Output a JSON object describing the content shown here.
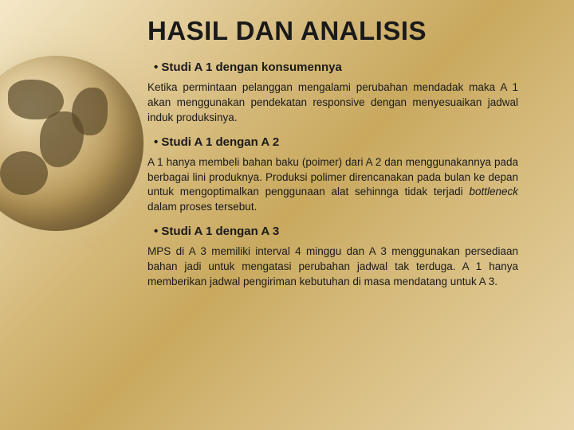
{
  "title": "HASIL DAN ANALISIS",
  "sections": [
    {
      "heading": "• Studi A 1 dengan konsumennya",
      "body": "Ketika permintaan pelanggan mengalami perubahan mendadak maka A 1 akan menggunakan pendekatan responsive dengan menyesuaikan jadwal induk produksinya."
    },
    {
      "heading": "• Studi A 1 dengan A 2",
      "body": "A 1 hanya membeli bahan baku (poimer) dari A 2 dan menggunakannya pada berbagai lini produknya. Produksi polimer direncanakan pada bulan ke depan untuk mengoptimalkan penggunaan alat sehinnga tidak terjadi <em>bottleneck</em> dalam proses tersebut."
    },
    {
      "heading": "• Studi A 1 dengan A 3",
      "body": "MPS di A 3 memiliki interval 4 minggu dan A 3 menggunakan persediaan bahan jadi untuk mengatasi perubahan jadwal tak terduga. A 1 hanya memberikan jadwal pengiriman kebutuhan di masa mendatang untuk A 3."
    }
  ],
  "colors": {
    "text": "#1a1a1a",
    "bg_gradient_start": "#f5e8c8",
    "bg_gradient_mid": "#c9a95e",
    "bg_gradient_end": "#e8d5a8",
    "continent": "#5a4828"
  }
}
